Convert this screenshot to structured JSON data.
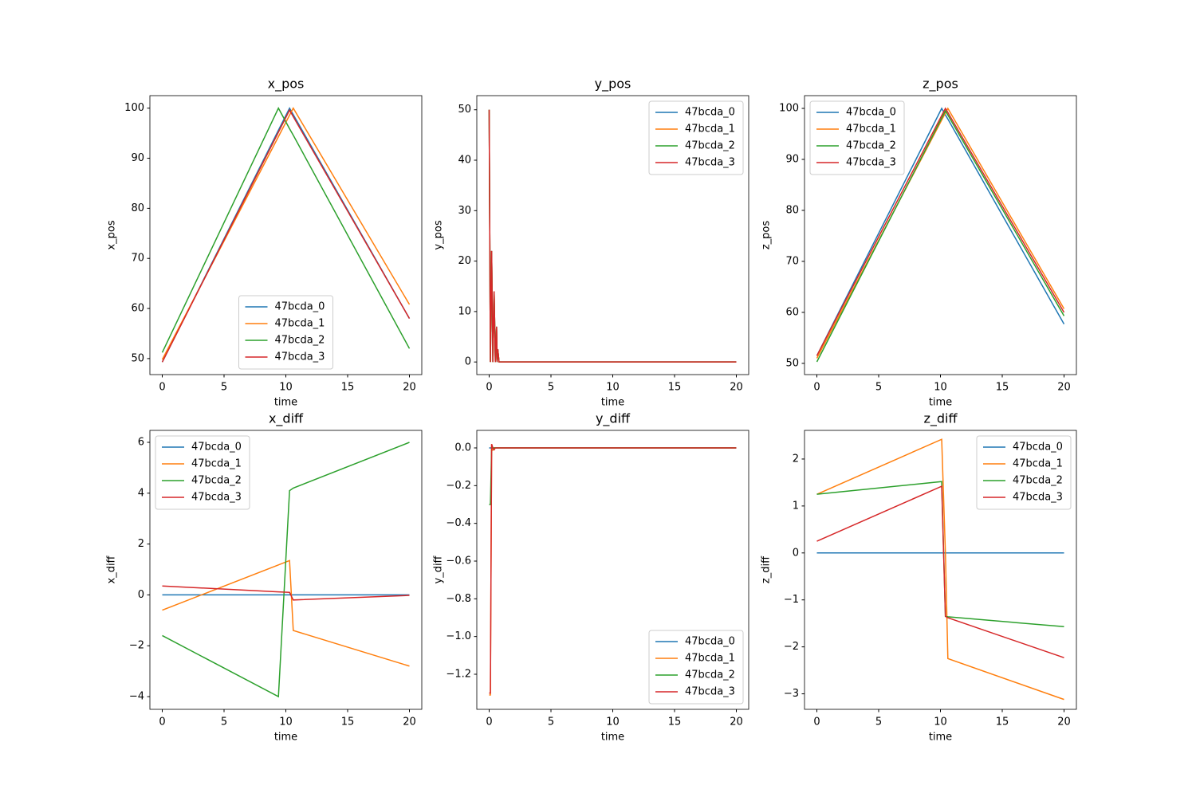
{
  "chart_data": [
    {
      "type": "line",
      "title": "x_pos",
      "xlabel": "time",
      "ylabel": "x_pos",
      "legend": "lower center",
      "x": [
        0,
        9.4,
        10.3,
        10.6,
        20
      ],
      "xlim": [
        -1,
        21
      ],
      "xticks": [
        0,
        5,
        10,
        15,
        20
      ],
      "ylim": [
        46.8,
        102.5
      ],
      "yticks": [
        50,
        60,
        70,
        80,
        90,
        100
      ],
      "series": [
        {
          "name": "47bcda_0",
          "color": "#1f77b4",
          "values": [
            49.3,
            95.6,
            100,
            98.7,
            58
          ]
        },
        {
          "name": "47bcda_1",
          "color": "#ff7f0e",
          "values": [
            49.8,
            94.3,
            98.6,
            100,
            60.8
          ]
        },
        {
          "name": "47bcda_2",
          "color": "#2ca02c",
          "values": [
            51.2,
            100,
            95.9,
            94.6,
            52
          ]
        },
        {
          "name": "47bcda_3",
          "color": "#d62728",
          "values": [
            49.3,
            95.2,
            99.6,
            98.3,
            58
          ]
        }
      ]
    },
    {
      "type": "line",
      "title": "y_pos",
      "xlabel": "time",
      "ylabel": "y_pos",
      "legend": "upper right",
      "x": [
        0,
        0.1,
        0.2,
        0.3,
        0.4,
        0.5,
        0.6,
        0.65,
        0.7,
        0.8,
        20
      ],
      "xlim": [
        -1,
        21
      ],
      "xticks": [
        0,
        5,
        10,
        15,
        20
      ],
      "ylim": [
        -2.5,
        52.8
      ],
      "yticks": [
        0,
        10,
        20,
        30,
        40,
        50
      ],
      "series": [
        {
          "name": "47bcda_0",
          "color": "#1f77b4",
          "values": [
            50,
            0,
            22,
            0,
            14,
            0,
            7,
            0,
            2.5,
            0,
            0
          ]
        },
        {
          "name": "47bcda_1",
          "color": "#ff7f0e",
          "values": [
            50,
            0,
            22,
            0,
            14,
            0,
            7,
            0,
            2.5,
            0,
            0
          ]
        },
        {
          "name": "47bcda_2",
          "color": "#2ca02c",
          "values": [
            50,
            0,
            22,
            0,
            14,
            0,
            7,
            0,
            2.5,
            0,
            0
          ]
        },
        {
          "name": "47bcda_3",
          "color": "#d62728",
          "values": [
            50,
            0,
            22,
            0,
            14,
            0,
            7,
            0,
            2.5,
            0,
            0
          ]
        }
      ]
    },
    {
      "type": "line",
      "title": "z_pos",
      "xlabel": "time",
      "ylabel": "z_pos",
      "legend": "upper left",
      "x": [
        0,
        10.1,
        10.4,
        10.6,
        20
      ],
      "xlim": [
        -1,
        21
      ],
      "xticks": [
        0,
        5,
        10,
        15,
        20
      ],
      "ylim": [
        47.8,
        102.5
      ],
      "yticks": [
        50,
        60,
        70,
        80,
        90,
        100
      ],
      "series": [
        {
          "name": "47bcda_0",
          "color": "#1f77b4",
          "values": [
            51.5,
            100,
            98.7,
            97.9,
            57.7
          ]
        },
        {
          "name": "47bcda_1",
          "color": "#ff7f0e",
          "values": [
            51,
            97.7,
            99.1,
            100,
            60.7
          ]
        },
        {
          "name": "47bcda_2",
          "color": "#2ca02c",
          "values": [
            50.3,
            98.1,
            99.5,
            98.7,
            59.3
          ]
        },
        {
          "name": "47bcda_3",
          "color": "#d62728",
          "values": [
            51.5,
            98.6,
            100,
            99.2,
            60
          ]
        }
      ]
    },
    {
      "type": "line",
      "title": "x_diff",
      "xlabel": "time",
      "ylabel": "x_diff",
      "legend": "upper left",
      "x": [
        0,
        9.4,
        10.3,
        10.6,
        20
      ],
      "xlim": [
        -1,
        21
      ],
      "xticks": [
        0,
        5,
        10,
        15,
        20
      ],
      "ylim": [
        -4.5,
        6.47
      ],
      "yticks": [
        {
          "value": -4,
          "label": "−4"
        },
        {
          "value": -2,
          "label": "−2"
        },
        0,
        2,
        4,
        6
      ],
      "series": [
        {
          "name": "47bcda_0",
          "color": "#1f77b4",
          "values": [
            0,
            0,
            0,
            0,
            0
          ]
        },
        {
          "name": "47bcda_1",
          "color": "#ff7f0e",
          "values": [
            -0.6,
            1.18,
            1.35,
            -1.4,
            -2.8
          ]
        },
        {
          "name": "47bcda_2",
          "color": "#2ca02c",
          "values": [
            -1.6,
            -4,
            4.1,
            4.2,
            6
          ]
        },
        {
          "name": "47bcda_3",
          "color": "#d62728",
          "values": [
            0.35,
            0.12,
            0.1,
            -0.2,
            -0.02
          ]
        }
      ]
    },
    {
      "type": "line",
      "title": "y_diff",
      "xlabel": "time",
      "ylabel": "y_diff",
      "legend": "lower right",
      "x": [
        0,
        0.1,
        0.2,
        0.3,
        0.4,
        0.5,
        0.6,
        20
      ],
      "xlim": [
        -1,
        21
      ],
      "xticks": [
        0,
        5,
        10,
        15,
        20
      ],
      "ylim": [
        -1.386,
        0.093
      ],
      "yticks": [
        {
          "value": -1.2,
          "label": "−1.2"
        },
        {
          "value": -1,
          "label": "−1.0"
        },
        {
          "value": -0.8,
          "label": "−0.8"
        },
        {
          "value": -0.6,
          "label": "−0.6"
        },
        {
          "value": -0.4,
          "label": "−0.4"
        },
        {
          "value": -0.2,
          "label": "−0.2"
        },
        {
          "value": 0,
          "label": "0.0"
        }
      ],
      "series": [
        {
          "name": "47bcda_0",
          "color": "#1f77b4",
          "values": [
            0,
            0,
            0,
            0,
            0,
            0,
            0,
            0
          ]
        },
        {
          "name": "47bcda_1",
          "color": "#ff7f0e",
          "values": [
            -1.31,
            -1.31,
            0.02,
            -0.01,
            0,
            0,
            0,
            0
          ]
        },
        {
          "name": "47bcda_2",
          "color": "#2ca02c",
          "values": [
            -0.3,
            -0.3,
            0,
            0,
            0,
            0,
            0,
            0
          ]
        },
        {
          "name": "47bcda_3",
          "color": "#d62728",
          "values": [
            -1.3,
            -1.3,
            0.02,
            0,
            -0.01,
            0,
            0,
            0
          ]
        }
      ]
    },
    {
      "type": "line",
      "title": "z_diff",
      "xlabel": "time",
      "ylabel": "z_diff",
      "legend": "upper right",
      "x": [
        0,
        10.1,
        10.4,
        10.6,
        20
      ],
      "xlim": [
        -1,
        21
      ],
      "xticks": [
        0,
        5,
        10,
        15,
        20
      ],
      "ylim": [
        -3.33,
        2.61
      ],
      "yticks": [
        {
          "value": -3,
          "label": "−3"
        },
        {
          "value": -2,
          "label": "−2"
        },
        {
          "value": -1,
          "label": "−1"
        },
        0,
        1,
        2
      ],
      "series": [
        {
          "name": "47bcda_0",
          "color": "#1f77b4",
          "values": [
            0,
            0,
            0,
            0,
            0
          ]
        },
        {
          "name": "47bcda_1",
          "color": "#ff7f0e",
          "values": [
            1.25,
            2.42,
            0,
            -2.25,
            -3.12
          ]
        },
        {
          "name": "47bcda_2",
          "color": "#2ca02c",
          "values": [
            1.25,
            1.52,
            -1.35,
            -1.36,
            -1.57
          ]
        },
        {
          "name": "47bcda_3",
          "color": "#d62728",
          "values": [
            0.25,
            1.42,
            -1.35,
            -1.38,
            -2.23
          ]
        }
      ]
    }
  ]
}
